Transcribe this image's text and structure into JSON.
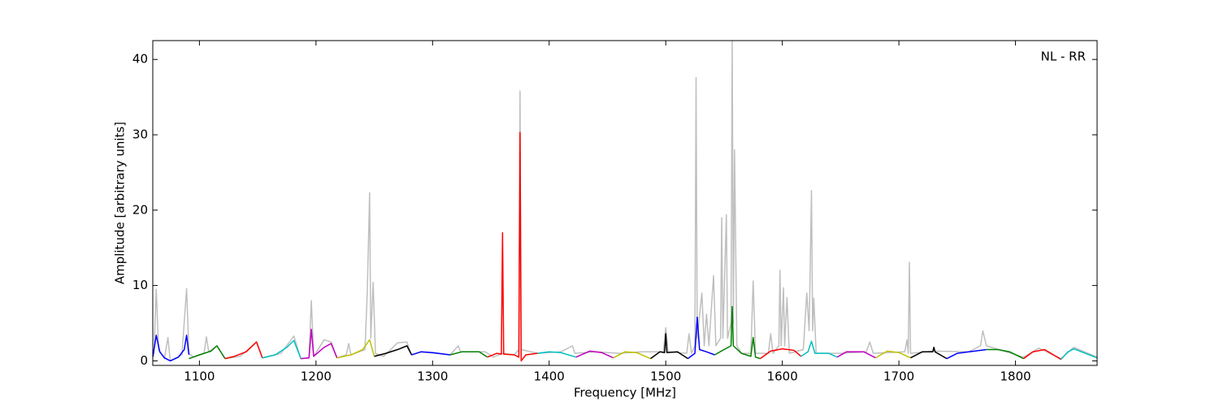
{
  "chart_data": {
    "type": "line",
    "xlabel": "Frequency [MHz]",
    "ylabel": "Amplitude [arbitrary units]",
    "annotation": "NL - RR",
    "xlim": [
      1060,
      1870
    ],
    "ylim": [
      -0.6,
      42.5
    ],
    "xticks": [
      1100,
      1200,
      1300,
      1400,
      1500,
      1600,
      1700,
      1800
    ],
    "yticks": [
      0,
      10,
      20,
      30,
      40
    ],
    "series": [
      {
        "color": "#bfbfbf",
        "x": [
          1060,
          1061,
          1063,
          1065,
          1070,
          1073,
          1075,
          1085,
          1089,
          1091,
          1095,
          1104,
          1106,
          1108,
          1115,
          1122,
          1135,
          1149,
          1154,
          1170,
          1181,
          1187,
          1194,
          1196,
          1198,
          1207,
          1213,
          1218,
          1226,
          1228,
          1230,
          1242,
          1244,
          1246,
          1247,
          1249,
          1251,
          1258,
          1270,
          1278,
          1282,
          1290,
          1315,
          1322,
          1324,
          1345,
          1352,
          1360,
          1370,
          1374,
          1375,
          1376,
          1390,
          1410,
          1420,
          1422,
          1440,
          1460,
          1480,
          1498,
          1500,
          1502,
          1518,
          1520,
          1522,
          1525,
          1526,
          1527,
          1531,
          1533,
          1535,
          1537,
          1541,
          1543,
          1547,
          1548,
          1549,
          1552,
          1553,
          1556,
          1557,
          1558,
          1559,
          1561,
          1565,
          1573,
          1575,
          1577,
          1588,
          1590,
          1592,
          1597,
          1598,
          1599,
          1601,
          1602,
          1604,
          1606,
          1618,
          1621,
          1623,
          1625,
          1626,
          1627,
          1629,
          1650,
          1672,
          1675,
          1678,
          1705,
          1707,
          1708,
          1709,
          1710,
          1730,
          1760,
          1770,
          1772,
          1775,
          1790,
          1807,
          1820,
          1839,
          1850,
          1870
        ],
        "values": [
          0.5,
          1,
          9.5,
          1.5,
          0.3,
          3.1,
          0,
          0.8,
          9.6,
          1,
          0.5,
          1,
          3.2,
          1.2,
          2,
          0.3,
          0.6,
          2.5,
          0.4,
          1,
          3.3,
          0.3,
          0.4,
          8,
          0.6,
          2.8,
          2.5,
          0.4,
          0.8,
          2.3,
          0.8,
          1.5,
          9.2,
          22.3,
          3,
          10.4,
          1,
          0.6,
          2.4,
          2.5,
          0.8,
          1.2,
          0.8,
          2,
          1.2,
          1.2,
          0.5,
          1,
          0.8,
          1.5,
          35.8,
          1.5,
          1,
          1.2,
          2,
          1,
          1.2,
          1,
          1.2,
          1.2,
          4.4,
          1.2,
          1,
          3.6,
          1,
          2,
          37.6,
          3,
          9,
          2,
          6.2,
          2,
          11.3,
          2,
          3,
          19,
          3,
          19.4,
          3,
          5,
          42.5,
          5,
          28,
          2,
          1,
          1,
          10.6,
          1,
          1,
          3.6,
          1,
          2,
          12,
          2,
          9.7,
          2,
          8.4,
          1,
          1.5,
          9,
          4,
          22.6,
          4,
          8.3,
          1,
          1,
          1.2,
          2.5,
          1,
          1.2,
          2.8,
          1,
          13.1,
          1,
          1.3,
          1.2,
          2,
          4,
          2,
          1.3,
          0.5,
          1.7,
          0.3,
          1.8,
          0.5
        ]
      },
      {
        "color": "#0000ff",
        "x": [
          1060,
          1063,
          1066,
          1070,
          1075,
          1082,
          1087,
          1089,
          1091
        ],
        "values": [
          0.5,
          3.4,
          1.2,
          0.4,
          0,
          0.5,
          1.5,
          3.4,
          0.8
        ]
      },
      {
        "color": "#008000",
        "x": [
          1091,
          1100,
          1110,
          1115,
          1122
        ],
        "values": [
          0.3,
          0.8,
          1.3,
          2,
          0.3
        ]
      },
      {
        "color": "#ff0000",
        "x": [
          1122,
          1130,
          1140,
          1149,
          1154
        ],
        "values": [
          0.3,
          0.6,
          1.2,
          2.5,
          0.4
        ]
      },
      {
        "color": "#00bfbf",
        "x": [
          1154,
          1165,
          1175,
          1181,
          1187
        ],
        "values": [
          0.4,
          0.8,
          1.8,
          2.7,
          0.3
        ]
      },
      {
        "color": "#bf00bf",
        "x": [
          1187,
          1194,
          1196,
          1198,
          1207,
          1213,
          1218
        ],
        "values": [
          0.3,
          0.4,
          4.2,
          0.6,
          1.8,
          2.3,
          0.4
        ]
      },
      {
        "color": "#bfbf00",
        "x": [
          1218,
          1230,
          1240,
          1246,
          1250
        ],
        "values": [
          0.4,
          0.8,
          1.5,
          2.8,
          0.6
        ]
      },
      {
        "color": "#000000",
        "x": [
          1250,
          1260,
          1270,
          1278,
          1282
        ],
        "values": [
          0.6,
          1,
          1.5,
          2,
          0.8
        ]
      },
      {
        "color": "#0000ff",
        "x": [
          1282,
          1290,
          1300,
          1315
        ],
        "values": [
          0.8,
          1.2,
          1.1,
          0.8
        ]
      },
      {
        "color": "#008000",
        "x": [
          1315,
          1325,
          1340,
          1347
        ],
        "values": [
          0.8,
          1.2,
          1.2,
          0.5
        ]
      },
      {
        "color": "#ff0000",
        "x": [
          1347,
          1355,
          1359,
          1360,
          1361,
          1370,
          1374,
          1375,
          1376,
          1380,
          1390
        ],
        "values": [
          0.5,
          1,
          0.9,
          17,
          0.9,
          0.8,
          0.5,
          30.3,
          0,
          0.8,
          1
        ]
      },
      {
        "color": "#00bfbf",
        "x": [
          1390,
          1400,
          1410,
          1423
        ],
        "values": [
          1,
          1.2,
          1.1,
          0.5
        ]
      },
      {
        "color": "#bf00bf",
        "x": [
          1423,
          1435,
          1445,
          1455
        ],
        "values": [
          0.5,
          1.3,
          1.1,
          0.4
        ]
      },
      {
        "color": "#bfbf00",
        "x": [
          1455,
          1465,
          1475,
          1487
        ],
        "values": [
          0.4,
          1.2,
          1.1,
          0.3
        ]
      },
      {
        "color": "#000000",
        "x": [
          1487,
          1495,
          1499,
          1500,
          1501,
          1510,
          1519
        ],
        "values": [
          0.3,
          1.2,
          1.1,
          3.6,
          1.1,
          1.2,
          0.3
        ]
      },
      {
        "color": "#0000ff",
        "x": [
          1519,
          1525,
          1527,
          1529,
          1535,
          1542
        ],
        "values": [
          0.3,
          1,
          5.8,
          1.5,
          1.2,
          0.8
        ]
      },
      {
        "color": "#008000",
        "x": [
          1542,
          1550,
          1556,
          1557,
          1558,
          1565,
          1573,
          1575,
          1577,
          1581
        ],
        "values": [
          0.8,
          1.5,
          2,
          7.2,
          2,
          1,
          0.6,
          3.1,
          0.5,
          0.3
        ]
      },
      {
        "color": "#ff0000",
        "x": [
          1581,
          1590,
          1600,
          1610,
          1616
        ],
        "values": [
          0.3,
          1.3,
          1.6,
          1.4,
          0.6
        ]
      },
      {
        "color": "#00bfbf",
        "x": [
          1616,
          1622,
          1625,
          1628,
          1640,
          1647
        ],
        "values": [
          0.6,
          1.2,
          2.6,
          1,
          1,
          0.5
        ]
      },
      {
        "color": "#bf00bf",
        "x": [
          1647,
          1655,
          1670,
          1680
        ],
        "values": [
          0.5,
          1.2,
          1.2,
          0.4
        ]
      },
      {
        "color": "#bfbf00",
        "x": [
          1680,
          1690,
          1700,
          1710
        ],
        "values": [
          0.4,
          1.3,
          1.1,
          0.4
        ]
      },
      {
        "color": "#000000",
        "x": [
          1710,
          1720,
          1729,
          1730,
          1731,
          1741
        ],
        "values": [
          0.4,
          1.2,
          1.2,
          1.8,
          1.2,
          0.3
        ]
      },
      {
        "color": "#0000ff",
        "x": [
          1741,
          1750,
          1765,
          1775
        ],
        "values": [
          0.3,
          1,
          1.3,
          1.5
        ]
      },
      {
        "color": "#008000",
        "x": [
          1775,
          1785,
          1795,
          1807
        ],
        "values": [
          1.5,
          1.5,
          1.2,
          0.3
        ]
      },
      {
        "color": "#ff0000",
        "x": [
          1807,
          1815,
          1825,
          1839
        ],
        "values": [
          0.3,
          1.2,
          1.5,
          0.2
        ]
      },
      {
        "color": "#00bfbf",
        "x": [
          1839,
          1845,
          1850,
          1860,
          1870
        ],
        "values": [
          0.2,
          1.2,
          1.6,
          1,
          0.4
        ]
      }
    ]
  }
}
